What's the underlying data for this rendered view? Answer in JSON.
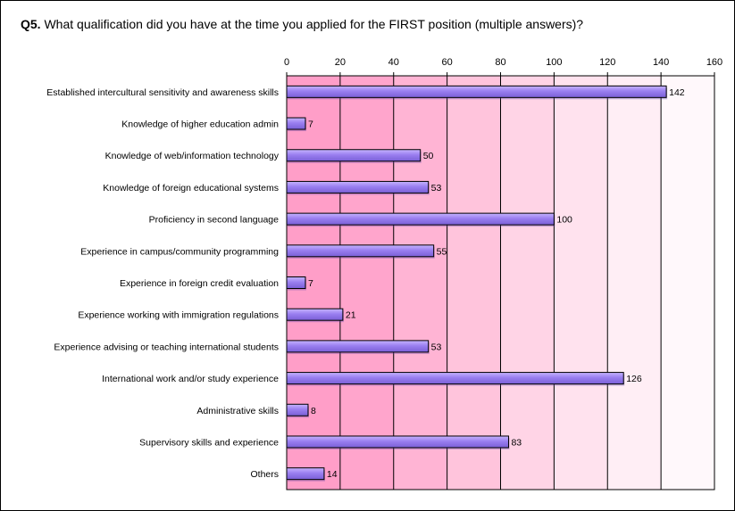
{
  "title": {
    "prefix": "Q5.",
    "text": " What qualification did you have at the time you applied for the FIRST position (multiple answers)?"
  },
  "chart_data": {
    "type": "bar",
    "orientation": "horizontal",
    "categories": [
      "Established intercultural sensitivity and awareness skills",
      "Knowledge of higher education admin",
      "Knowledge of web/information technology",
      "Knowledge of foreign educational systems",
      "Proficiency in second language",
      "Experience in campus/community programming",
      "Experience in foreign credit evaluation",
      "Experience working with immigration regulations",
      "Experience advising or teaching international students",
      "International work and/or study experience",
      "Administrative skills",
      "Supervisory skills and experience",
      "Others"
    ],
    "values": [
      142,
      7,
      50,
      53,
      100,
      55,
      7,
      21,
      53,
      126,
      8,
      83,
      14
    ],
    "data_labels": [
      "142",
      "7",
      "50",
      "53",
      "100",
      "55",
      "7",
      "21",
      "53",
      "126",
      "8",
      "83",
      "14"
    ],
    "xlim": [
      0,
      160
    ],
    "xticks": [
      0,
      20,
      40,
      60,
      80,
      100,
      120,
      140,
      160
    ],
    "xtick_labels": [
      "0",
      "20",
      "40",
      "60",
      "80",
      "100",
      "120",
      "140",
      "160"
    ],
    "axis_position": "top",
    "grid": true,
    "legend": "none",
    "colors": {
      "bar_fill": "#9a7ff0",
      "bar_highlight": "#c6b4ff",
      "bar_stroke": "#000000",
      "band_gradient": [
        "#ff9ec8",
        "#ffa5cc",
        "#ffb4d4",
        "#ffc4dc",
        "#ffd4e6",
        "#ffe2ee",
        "#ffeef5",
        "#fff8fb"
      ],
      "gridline": "#000000"
    }
  }
}
